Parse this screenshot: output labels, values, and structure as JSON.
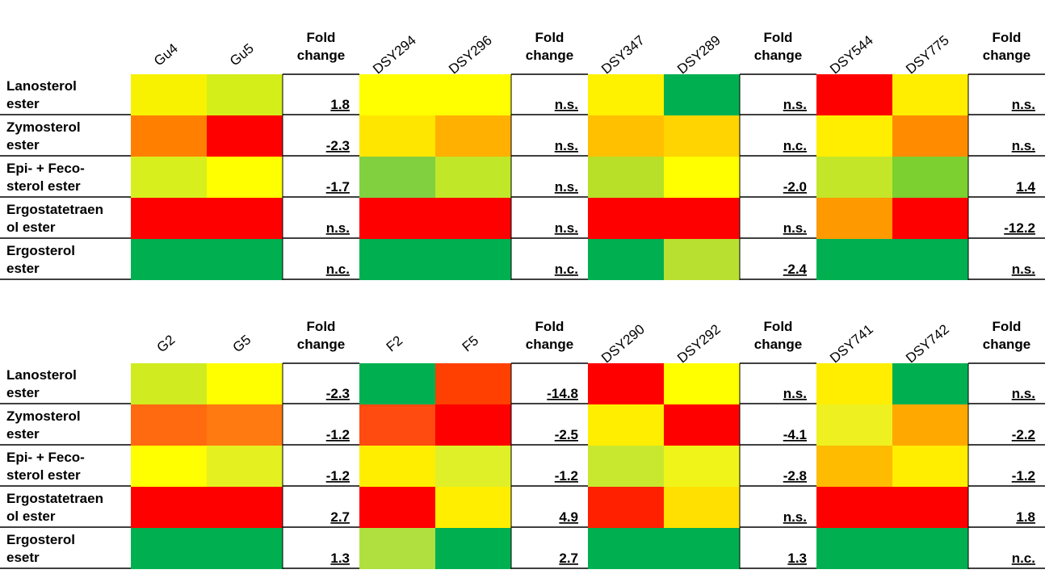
{
  "panels": [
    {
      "groups": [
        {
          "strains": [
            "Gu4",
            "Gu5"
          ],
          "fold_header": [
            "Fold",
            "change"
          ]
        },
        {
          "strains": [
            "DSY294",
            "DSY296"
          ],
          "fold_header": [
            "Fold",
            "change"
          ]
        },
        {
          "strains": [
            "DSY347",
            "DSY289"
          ],
          "fold_header": [
            "Fold",
            "change"
          ]
        },
        {
          "strains": [
            "DSY544",
            "DSY775"
          ],
          "fold_header": [
            "Fold",
            "change"
          ]
        }
      ],
      "rows": [
        {
          "label": [
            "Lanosterol",
            "ester"
          ],
          "cells": [
            "#f8f200",
            "#d4ee1a",
            "#ffff00",
            "#ffff00",
            "#fff200",
            "#00b050",
            "#ff0000",
            "#ffee00"
          ],
          "folds": [
            "1.8",
            "n.s.",
            "n.s.",
            "n.s."
          ]
        },
        {
          "label": [
            "Zymosterol",
            "ester"
          ],
          "cells": [
            "#ff8000",
            "#ff0000",
            "#ffe600",
            "#ffb000",
            "#ffc000",
            "#ffd400",
            "#ffee00",
            "#ff8c00"
          ],
          "folds": [
            "-2.3",
            "n.s.",
            "n.c.",
            "n.s."
          ]
        },
        {
          "label": [
            "Epi- + Feco-",
            "sterol ester"
          ],
          "cells": [
            "#d7ef1c",
            "#ffff00",
            "#80d040",
            "#c0e828",
            "#b8e028",
            "#ffff00",
            "#c4e628",
            "#7cd030"
          ],
          "folds": [
            "-1.7",
            "n.s.",
            "-2.0",
            "1.4"
          ]
        },
        {
          "label": [
            "Ergostatetraen",
            "ol ester"
          ],
          "cells": [
            "#ff0000",
            "#ff0000",
            "#ff0000",
            "#ff0000",
            "#ff0000",
            "#ff0000",
            "#ff9900",
            "#ff0000"
          ],
          "folds": [
            "n.s.",
            "n.s.",
            "n.s.",
            "-12.2"
          ]
        },
        {
          "label": [
            "Ergosterol",
            "ester"
          ],
          "cells": [
            "#00b050",
            "#00b050",
            "#00b050",
            "#00b050",
            "#00b050",
            "#b8e030",
            "#00b050",
            "#00b050"
          ],
          "folds": [
            "n.c.",
            "n.c.",
            "-2.4",
            "n.s."
          ]
        }
      ]
    },
    {
      "groups": [
        {
          "strains": [
            "G2",
            "G5"
          ],
          "fold_header": [
            "Fold",
            "change"
          ]
        },
        {
          "strains": [
            "F2",
            "F5"
          ],
          "fold_header": [
            "Fold",
            "change"
          ]
        },
        {
          "strains": [
            "DSY290",
            "DSY292"
          ],
          "fold_header": [
            "Fold",
            "change"
          ]
        },
        {
          "strains": [
            "DSY741",
            "DSY742"
          ],
          "fold_header": [
            "Fold",
            "change"
          ]
        }
      ],
      "rows": [
        {
          "label": [
            "Lanosterol",
            "ester"
          ],
          "cells": [
            "#d0ec20",
            "#ffff00",
            "#00b050",
            "#ff4000",
            "#ff0000",
            "#ffff00",
            "#ffee00",
            "#00b050"
          ],
          "folds": [
            "-2.3",
            "-14.8",
            "n.s.",
            "n.s."
          ]
        },
        {
          "label": [
            "Zymosterol",
            "ester"
          ],
          "cells": [
            "#ff6a10",
            "#ff7a10",
            "#ff4a10",
            "#ff0000",
            "#ffee00",
            "#ff0000",
            "#eef020",
            "#ffa800"
          ],
          "folds": [
            "-1.2",
            "-2.5",
            "-4.1",
            "-2.2"
          ]
        },
        {
          "label": [
            "Epi- + Feco-",
            "sterol ester"
          ],
          "cells": [
            "#ffff00",
            "#e4f020",
            "#ffee00",
            "#e0f028",
            "#c8e830",
            "#f0f418",
            "#ffbb00",
            "#ffee00"
          ],
          "folds": [
            "-1.2",
            "-1.2",
            "-2.8",
            "-1.2"
          ]
        },
        {
          "label": [
            "Ergostatetraen",
            "ol ester"
          ],
          "cells": [
            "#ff0000",
            "#ff0000",
            "#ff0000",
            "#ffee00",
            "#ff2000",
            "#ffe000",
            "#ff0000",
            "#ff0000"
          ],
          "folds": [
            "2.7",
            "4.9",
            "n.s.",
            "1.8"
          ]
        },
        {
          "label": [
            "Ergosterol",
            "esetr"
          ],
          "cells": [
            "#00b050",
            "#00b050",
            "#b0e040",
            "#00b050",
            "#00b050",
            "#00b050",
            "#00b050",
            "#00b050"
          ],
          "folds": [
            "1.3",
            "2.7",
            "1.3",
            "n.c."
          ]
        }
      ]
    }
  ]
}
